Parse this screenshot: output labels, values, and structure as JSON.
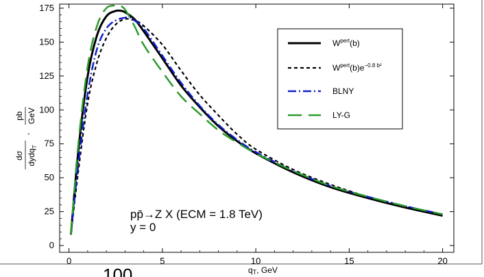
{
  "chart_data": {
    "type": "line",
    "title": "",
    "xlabel": "q_T, GeV",
    "ylabel": "dσ/(dy dq_T), pb/GeV",
    "xlim": [
      -0.5,
      20.6
    ],
    "ylim": [
      -5,
      178
    ],
    "x_ticks": [
      0,
      5,
      10,
      15,
      20
    ],
    "y_ticks": [
      0,
      25,
      50,
      75,
      100,
      125,
      150,
      175
    ],
    "grid": false,
    "legend_position": "top-right",
    "annotation": {
      "line1": "pp̄→Z X (ECM = 1.8 TeV)",
      "line2": "y = 0"
    },
    "partial_text_bottom_left": "100",
    "series": [
      {
        "name": "W^pert(b)",
        "legend_base": "W",
        "legend_sup": "pert",
        "legend_tail": "(b)",
        "color": "#000000",
        "dash": "solid",
        "width": 3,
        "x": [
          0.1,
          0.5,
          1.0,
          1.5,
          2.0,
          2.5,
          2.8,
          3.0,
          3.5,
          4.0,
          5.0,
          6.0,
          7.0,
          8.0,
          9.0,
          10.0,
          12.0,
          14.0,
          16.0,
          18.0,
          20.0
        ],
        "y": [
          8,
          70,
          125,
          155,
          169,
          173,
          173,
          172,
          167,
          158,
          138,
          118,
          102,
          88,
          77,
          68,
          54,
          43,
          35,
          28,
          22
        ]
      },
      {
        "name": "W^pert(b)e^-0.8b²",
        "legend_base": "W",
        "legend_sup": "pert",
        "legend_tail": "(b)e",
        "legend_sup2": "−0.8 b²",
        "color": "#000000",
        "dash": "5,4",
        "width": 2.2,
        "x": [
          0.1,
          0.5,
          1.0,
          1.5,
          2.0,
          2.5,
          3.0,
          3.5,
          4.0,
          5.0,
          6.0,
          7.0,
          8.0,
          9.0,
          10.0,
          12.0,
          14.0,
          16.0,
          18.0,
          20.0
        ],
        "y": [
          8,
          55,
          105,
          135,
          153,
          163,
          167,
          166,
          162,
          148,
          129,
          111,
          96,
          82,
          71,
          56,
          45,
          36,
          29,
          23
        ]
      },
      {
        "name": "BLNY",
        "color": "#1020c8",
        "dash": "12,4,2,4",
        "width": 2.5,
        "x": [
          0.1,
          0.5,
          1.0,
          1.5,
          2.0,
          2.5,
          3.0,
          3.3,
          3.5,
          4.0,
          5.0,
          6.0,
          7.0,
          8.0,
          9.0,
          10.0,
          12.0,
          14.0,
          16.0,
          18.0,
          20.0
        ],
        "y": [
          8,
          60,
          112,
          145,
          160,
          166,
          168,
          168,
          166,
          160,
          140,
          120,
          103,
          89,
          78,
          69,
          55,
          44,
          36,
          29,
          23
        ]
      },
      {
        "name": "LY-G",
        "color": "#2a9b2a",
        "dash": "20,10",
        "width": 2.5,
        "x": [
          0.1,
          0.5,
          1.0,
          1.5,
          2.0,
          2.5,
          2.7,
          3.0,
          3.5,
          4.0,
          5.0,
          6.0,
          7.0,
          8.0,
          9.0,
          10.0,
          12.0,
          14.0,
          16.0,
          18.0,
          20.0
        ],
        "y": [
          8,
          75,
          132,
          162,
          175,
          177,
          177,
          174,
          162,
          148,
          128,
          110,
          97,
          85,
          76,
          68,
          55,
          44,
          36,
          29,
          23
        ]
      }
    ]
  }
}
